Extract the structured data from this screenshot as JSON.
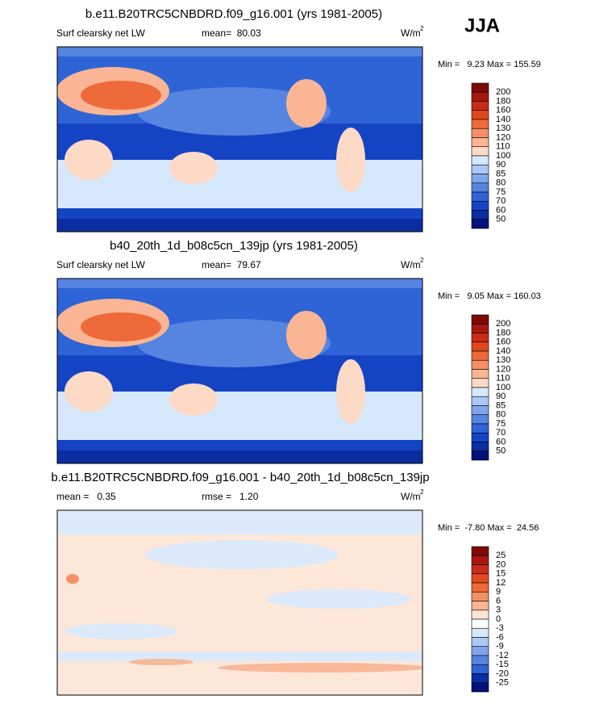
{
  "season": "JJA",
  "panels": [
    {
      "title": "b.e11.B20TRC5CNBDRD.f09_g16.001 (yrs 1981-2005)",
      "variable": "Surf clearsky net LW",
      "stat": "mean=  80.03",
      "units": "W/m",
      "units_power": "2",
      "minmax": "Min =   9.23 Max = 155.59",
      "colorbar": {
        "labels": [
          "200",
          "180",
          "160",
          "140",
          "130",
          "120",
          "110",
          "100",
          "90",
          "85",
          "80",
          "75",
          "70",
          "60",
          "50"
        ],
        "colors": [
          "#7d0a07",
          "#a8170e",
          "#c82c16",
          "#e0481e",
          "#ee6a3a",
          "#f59066",
          "#fab594",
          "#fddac6",
          "#d6e8fb",
          "#aac8f3",
          "#7fa5eb",
          "#5585e0",
          "#2f64d6",
          "#1444c4",
          "#0a2ea2",
          "#02127a"
        ]
      }
    },
    {
      "title": "b40_20th_1d_b08c5cn_139jp (yrs 1981-2005)",
      "variable": "Surf clearsky net LW",
      "stat": "mean=  79.67",
      "units": "W/m",
      "units_power": "2",
      "minmax": "Min =   9.05 Max = 160.03",
      "colorbar": {
        "labels": [
          "200",
          "180",
          "160",
          "140",
          "130",
          "120",
          "110",
          "100",
          "90",
          "85",
          "80",
          "75",
          "70",
          "60",
          "50"
        ],
        "colors": [
          "#7d0a07",
          "#a8170e",
          "#c82c16",
          "#e0481e",
          "#ee6a3a",
          "#f59066",
          "#fab594",
          "#fddac6",
          "#d6e8fb",
          "#aac8f3",
          "#7fa5eb",
          "#5585e0",
          "#2f64d6",
          "#1444c4",
          "#0a2ea2",
          "#02127a"
        ]
      }
    },
    {
      "title": "b.e11.B20TRC5CNBDRD.f09_g16.001 - b40_20th_1d_b08c5cn_139jp",
      "variable": "mean =   0.35",
      "stat": "rmse =   1.20",
      "units": "W/m",
      "units_power": "2",
      "minmax": "Min =  -7.80 Max =  24.56",
      "colorbar": {
        "labels": [
          "25",
          "20",
          "15",
          "12",
          "9",
          "6",
          "3",
          "0",
          "-3",
          "-6",
          "-9",
          "-12",
          "-15",
          "-20",
          "-25"
        ],
        "colors": [
          "#7d0a07",
          "#a8170e",
          "#c82c16",
          "#e0481e",
          "#ee6a3a",
          "#f59066",
          "#fab594",
          "#fde4d4",
          "#ffffff",
          "#d6e8fb",
          "#aac8f3",
          "#7fa5eb",
          "#5585e0",
          "#2f64d6",
          "#0a2ea2",
          "#02127a"
        ]
      }
    }
  ]
}
